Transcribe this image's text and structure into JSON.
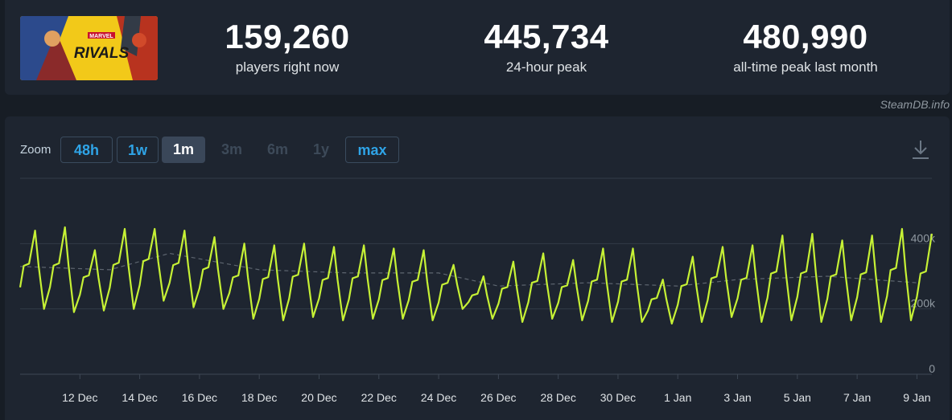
{
  "stats": [
    {
      "value": "159,260",
      "label": "players right now"
    },
    {
      "value": "445,734",
      "label": "24-hour peak"
    },
    {
      "value": "480,990",
      "label": "all-time peak last month"
    }
  ],
  "game_thumb": {
    "logo_text": "RIVALS",
    "brand_text": "MARVEL"
  },
  "credit": "SteamDB.info",
  "zoom": {
    "label": "Zoom",
    "buttons": [
      {
        "label": "48h",
        "state": "outlined"
      },
      {
        "label": "1w",
        "state": "outlined"
      },
      {
        "label": "1m",
        "state": "active"
      },
      {
        "label": "3m",
        "state": "disabled"
      },
      {
        "label": "6m",
        "state": "disabled"
      },
      {
        "label": "1y",
        "state": "disabled"
      },
      {
        "label": "max",
        "state": "outlined"
      }
    ]
  },
  "icons": {
    "download": "download-icon"
  },
  "colors": {
    "line": "#c6f135",
    "average_line": "#5e6670",
    "accent": "#2fa4e7",
    "background": "#171d25",
    "panel": "#1e2530"
  },
  "chart_data": {
    "type": "line",
    "x_tick_labels": [
      "12 Dec",
      "14 Dec",
      "16 Dec",
      "18 Dec",
      "20 Dec",
      "22 Dec",
      "24 Dec",
      "26 Dec",
      "28 Dec",
      "30 Dec",
      "1 Jan",
      "3 Jan",
      "5 Jan",
      "7 Jan",
      "9 Jan"
    ],
    "y_tick_labels": [
      "0",
      "200k",
      "400k"
    ],
    "y_ticks": [
      0,
      200000,
      400000
    ],
    "ylim": [
      0,
      600000
    ],
    "xlim": [
      "2024-12-10",
      "2025-01-09T12:00"
    ],
    "grid": true,
    "series": [
      {
        "style": "solid",
        "x": [
          "2024-12-10",
          "2024-12-11",
          "2024-12-12",
          "2024-12-13",
          "2024-12-14",
          "2024-12-15",
          "2024-12-16",
          "2024-12-17",
          "2024-12-18",
          "2024-12-19",
          "2024-12-20",
          "2024-12-21",
          "2024-12-22",
          "2024-12-23",
          "2024-12-24",
          "2024-12-25",
          "2024-12-26",
          "2024-12-27",
          "2024-12-28",
          "2024-12-29",
          "2024-12-30",
          "2024-12-31",
          "2025-01-01",
          "2025-01-02",
          "2025-01-03",
          "2025-01-04",
          "2025-01-05",
          "2025-01-06",
          "2025-01-07",
          "2025-01-08",
          "2025-01-09"
        ],
        "peaks": [
          440000,
          450000,
          380000,
          445000,
          445000,
          440000,
          420000,
          400000,
          395000,
          400000,
          390000,
          395000,
          385000,
          380000,
          335000,
          300000,
          345000,
          370000,
          350000,
          385000,
          385000,
          290000,
          360000,
          390000,
          395000,
          425000,
          430000,
          410000,
          425000,
          445000,
          430000
        ],
        "troughs": [
          200000,
          190000,
          195000,
          200000,
          225000,
          205000,
          200000,
          170000,
          165000,
          175000,
          165000,
          170000,
          170000,
          165000,
          200000,
          170000,
          160000,
          170000,
          165000,
          160000,
          160000,
          155000,
          160000,
          175000,
          160000,
          165000,
          160000,
          165000,
          160000,
          165000,
          160000
        ]
      },
      {
        "style": "dashed",
        "x": [
          "2024-12-10",
          "2024-12-13",
          "2024-12-15",
          "2024-12-18",
          "2024-12-21",
          "2024-12-24",
          "2024-12-26",
          "2024-12-29",
          "2025-01-01",
          "2025-01-03",
          "2025-01-06",
          "2025-01-09"
        ],
        "values": [
          330000,
          320000,
          370000,
          320000,
          310000,
          310000,
          270000,
          280000,
          270000,
          290000,
          300000,
          280000
        ]
      }
    ]
  }
}
